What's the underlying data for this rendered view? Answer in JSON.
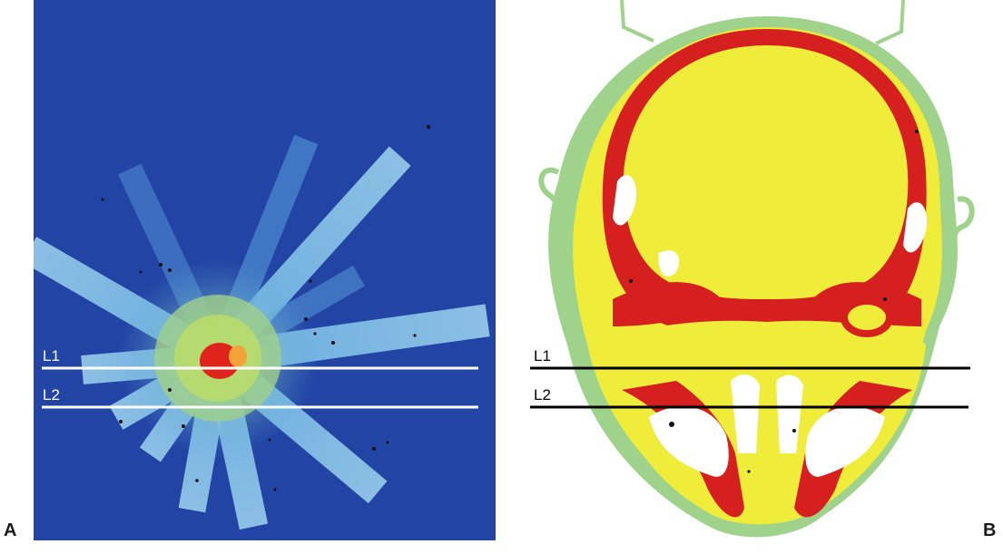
{
  "panels": {
    "a": {
      "letter": "A",
      "line1_label": "L1",
      "line2_label": "L2"
    },
    "b": {
      "letter": "B",
      "line1_label": "L1",
      "line2_label": "L2"
    }
  },
  "colors": {
    "dose_background": "#1f3f9e",
    "dose_streak": "#7fc6e6",
    "dose_mid": "#9ed47a",
    "dose_hot": "#e0241b",
    "tissue_soft": "#f0ec3a",
    "tissue_bone": "#d61f1f",
    "tissue_skin": "#9fd38c",
    "air": "#ffffff"
  },
  "icons": {
    "panel_a": "radiation-dose-map-image",
    "panel_b": "head-ct-segmentation-image"
  }
}
